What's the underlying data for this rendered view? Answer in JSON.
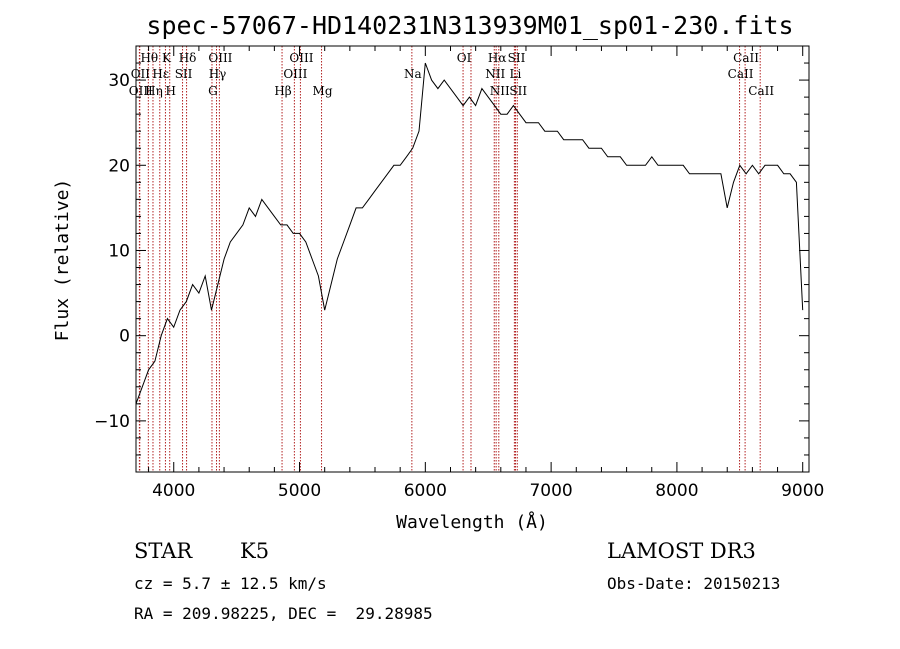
{
  "chart_data": {
    "type": "line",
    "title": "spec-57067-HD140231N313939M01_sp01-230.fits",
    "xlabel": "Wavelength (Å)",
    "ylabel": "Flux (relative)",
    "xlim": [
      3700,
      9050
    ],
    "ylim": [
      -16,
      34
    ],
    "xticks": [
      4000,
      5000,
      6000,
      7000,
      8000,
      9000
    ],
    "yticks": [
      -10,
      0,
      10,
      20,
      30
    ],
    "grid": false,
    "line_color": "#000000",
    "marker_color": "#b22222",
    "series": [
      {
        "x": [
          3700,
          3750,
          3800,
          3850,
          3900,
          3950,
          4000,
          4050,
          4100,
          4150,
          4200,
          4250,
          4300,
          4350,
          4400,
          4450,
          4500,
          4550,
          4600,
          4650,
          4700,
          4750,
          4800,
          4850,
          4900,
          4950,
          5000,
          5050,
          5100,
          5150,
          5200,
          5250,
          5300,
          5350,
          5400,
          5450,
          5500,
          5550,
          5600,
          5650,
          5700,
          5750,
          5800,
          5850,
          5900,
          5950,
          6000,
          6050,
          6100,
          6150,
          6200,
          6250,
          6300,
          6350,
          6400,
          6450,
          6500,
          6550,
          6600,
          6650,
          6700,
          6750,
          6800,
          6850,
          6900,
          6950,
          7000,
          7050,
          7100,
          7150,
          7200,
          7250,
          7300,
          7350,
          7400,
          7450,
          7500,
          7550,
          7600,
          7650,
          7700,
          7750,
          7800,
          7850,
          7900,
          7950,
          8000,
          8050,
          8100,
          8150,
          8200,
          8250,
          8300,
          8350,
          8400,
          8450,
          8500,
          8550,
          8600,
          8650,
          8700,
          8750,
          8800,
          8850,
          8900,
          8950,
          9000
        ],
        "y": [
          -8,
          -6,
          -4,
          -3,
          0,
          2,
          1,
          3,
          4,
          6,
          5,
          7,
          3,
          6,
          9,
          11,
          12,
          13,
          15,
          14,
          16,
          15,
          14,
          13,
          13,
          12,
          12,
          11,
          9,
          7,
          3,
          6,
          9,
          11,
          13,
          15,
          15,
          16,
          17,
          18,
          19,
          20,
          20,
          21,
          22,
          24,
          32,
          30,
          29,
          30,
          29,
          28,
          27,
          28,
          27,
          29,
          28,
          27,
          26,
          26,
          27,
          26,
          25,
          25,
          25,
          24,
          24,
          24,
          23,
          23,
          23,
          23,
          22,
          22,
          22,
          21,
          21,
          21,
          20,
          20,
          20,
          20,
          21,
          20,
          20,
          20,
          20,
          20,
          19,
          19,
          19,
          19,
          19,
          19,
          15,
          18,
          20,
          19,
          20,
          19,
          20,
          20,
          20,
          19,
          19,
          18,
          3
        ]
      }
    ],
    "line_markers": [
      {
        "label": "Hθ",
        "x": 3798,
        "row": 1
      },
      {
        "label": "OII",
        "x": 3727,
        "row": 2
      },
      {
        "label": "OIII",
        "x": 3730,
        "row": 3
      },
      {
        "label": "Hη",
        "x": 3835,
        "row": 3
      },
      {
        "label": "K",
        "x": 3934,
        "row": 1
      },
      {
        "label": "Hε",
        "x": 3889,
        "row": 2
      },
      {
        "label": "SII",
        "x": 4070,
        "row": 2
      },
      {
        "label": "H",
        "x": 3968,
        "row": 3
      },
      {
        "label": "Hδ",
        "x": 4102,
        "row": 1
      },
      {
        "label": "OIII",
        "x": 4363,
        "row": 1
      },
      {
        "label": "Hγ",
        "x": 4340,
        "row": 2
      },
      {
        "label": "G",
        "x": 4304,
        "row": 3
      },
      {
        "label": "OIII",
        "x": 5007,
        "row": 1
      },
      {
        "label": "OIII",
        "x": 4959,
        "row": 2
      },
      {
        "label": "Hβ",
        "x": 4861,
        "row": 3
      },
      {
        "label": "Mg",
        "x": 5175,
        "row": 3
      },
      {
        "label": "Na",
        "x": 5893,
        "row": 2
      },
      {
        "label": "OI",
        "x": 6300,
        "row": 1
      },
      {
        "label": "Hα",
        "x": 6563,
        "row": 1
      },
      {
        "label": "SII",
        "x": 6717,
        "row": 1
      },
      {
        "label": "NII",
        "x": 6548,
        "row": 2
      },
      {
        "label": "Li",
        "x": 6708,
        "row": 2
      },
      {
        "label": "NII",
        "x": 6584,
        "row": 3
      },
      {
        "label": "SII",
        "x": 6731,
        "row": 3
      },
      {
        "label": "CaII",
        "x": 8542,
        "row": 1
      },
      {
        "label": "CaII",
        "x": 8498,
        "row": 2
      },
      {
        "label": "CaII",
        "x": 8662,
        "row": 3
      }
    ],
    "marker_lines_x": [
      3727,
      3730,
      3798,
      3835,
      3889,
      3934,
      3968,
      4070,
      4102,
      4304,
      4340,
      4363,
      4861,
      4959,
      5007,
      5175,
      5893,
      6300,
      6363,
      6548,
      6563,
      6584,
      6708,
      6717,
      6731,
      8498,
      8542,
      8662
    ]
  },
  "info": {
    "object_class": "STAR",
    "subclass": "K5",
    "survey": "LAMOST DR3",
    "cz": "cz = 5.7 ± 12.5 km/s",
    "obs_date": "Obs-Date: 20150213",
    "coords": "RA = 209.98225, DEC =  29.28985"
  }
}
